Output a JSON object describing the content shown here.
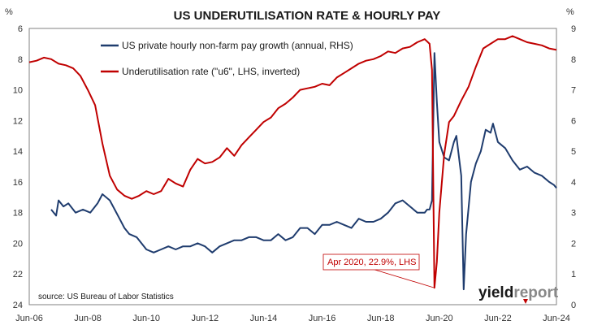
{
  "colors": {
    "pay": "#1f3c6e",
    "u6": "#c00000",
    "frame": "#808080"
  },
  "chart_data": {
    "type": "line",
    "title": "US UNDERUTILISATION RATE & HOURLY PAY",
    "left_axis": {
      "unit": "%",
      "min": 6,
      "max": 24,
      "inverted": true,
      "ticks": [
        6,
        8,
        10,
        12,
        14,
        16,
        18,
        20,
        22,
        24
      ]
    },
    "right_axis": {
      "unit": "%",
      "min": 0,
      "max": 9,
      "ticks": [
        0,
        1,
        2,
        3,
        4,
        5,
        6,
        7,
        8,
        9
      ]
    },
    "x_axis": {
      "start": "2006-06",
      "end": "2024-06",
      "ticks": [
        "Jun-06",
        "Jun-08",
        "Jun-10",
        "Jun-12",
        "Jun-14",
        "Jun-16",
        "Jun-18",
        "Jun-20",
        "Jun-22",
        "Jun-24"
      ]
    },
    "grid": false,
    "legend": "top-left",
    "series": [
      {
        "name": "US private hourly non-farm pay growth (annual, RHS)",
        "axis": "right",
        "color": "#1f3c6e",
        "points": [
          [
            "2007-03",
            3.1
          ],
          [
            "2007-05",
            2.9
          ],
          [
            "2007-06",
            3.4
          ],
          [
            "2007-08",
            3.2
          ],
          [
            "2007-10",
            3.3
          ],
          [
            "2008-01",
            3.0
          ],
          [
            "2008-04",
            3.1
          ],
          [
            "2008-07",
            3.0
          ],
          [
            "2008-10",
            3.3
          ],
          [
            "2008-12",
            3.6
          ],
          [
            "2009-03",
            3.4
          ],
          [
            "2009-05",
            3.1
          ],
          [
            "2009-07",
            2.8
          ],
          [
            "2009-09",
            2.5
          ],
          [
            "2009-11",
            2.3
          ],
          [
            "2010-02",
            2.2
          ],
          [
            "2010-06",
            1.8
          ],
          [
            "2010-09",
            1.7
          ],
          [
            "2010-12",
            1.8
          ],
          [
            "2011-03",
            1.9
          ],
          [
            "2011-06",
            1.8
          ],
          [
            "2011-09",
            1.9
          ],
          [
            "2011-12",
            1.9
          ],
          [
            "2012-03",
            2.0
          ],
          [
            "2012-06",
            1.9
          ],
          [
            "2012-09",
            1.7
          ],
          [
            "2012-12",
            1.9
          ],
          [
            "2013-03",
            2.0
          ],
          [
            "2013-06",
            2.1
          ],
          [
            "2013-09",
            2.1
          ],
          [
            "2013-12",
            2.2
          ],
          [
            "2014-03",
            2.2
          ],
          [
            "2014-06",
            2.1
          ],
          [
            "2014-09",
            2.1
          ],
          [
            "2014-12",
            2.3
          ],
          [
            "2015-03",
            2.1
          ],
          [
            "2015-06",
            2.2
          ],
          [
            "2015-09",
            2.5
          ],
          [
            "2015-12",
            2.5
          ],
          [
            "2016-03",
            2.3
          ],
          [
            "2016-06",
            2.6
          ],
          [
            "2016-09",
            2.6
          ],
          [
            "2016-12",
            2.7
          ],
          [
            "2017-03",
            2.6
          ],
          [
            "2017-06",
            2.5
          ],
          [
            "2017-09",
            2.8
          ],
          [
            "2017-12",
            2.7
          ],
          [
            "2018-03",
            2.7
          ],
          [
            "2018-06",
            2.8
          ],
          [
            "2018-09",
            3.0
          ],
          [
            "2018-12",
            3.3
          ],
          [
            "2019-03",
            3.4
          ],
          [
            "2019-06",
            3.2
          ],
          [
            "2019-09",
            3.0
          ],
          [
            "2019-12",
            3.0
          ],
          [
            "2020-01",
            3.1
          ],
          [
            "2020-02",
            3.1
          ],
          [
            "2020-03",
            3.4
          ],
          [
            "2020-04",
            8.2
          ],
          [
            "2020-05",
            6.6
          ],
          [
            "2020-06",
            5.3
          ],
          [
            "2020-08",
            4.8
          ],
          [
            "2020-10",
            4.7
          ],
          [
            "2020-12",
            5.3
          ],
          [
            "2021-01",
            5.5
          ],
          [
            "2021-03",
            4.2
          ],
          [
            "2021-04",
            0.5
          ],
          [
            "2021-05",
            2.3
          ],
          [
            "2021-07",
            4.0
          ],
          [
            "2021-09",
            4.6
          ],
          [
            "2021-11",
            5.0
          ],
          [
            "2022-01",
            5.7
          ],
          [
            "2022-03",
            5.6
          ],
          [
            "2022-04",
            5.9
          ],
          [
            "2022-06",
            5.3
          ],
          [
            "2022-09",
            5.1
          ],
          [
            "2022-12",
            4.7
          ],
          [
            "2023-03",
            4.4
          ],
          [
            "2023-06",
            4.5
          ],
          [
            "2023-09",
            4.3
          ],
          [
            "2023-12",
            4.2
          ],
          [
            "2024-03",
            4.0
          ],
          [
            "2024-05",
            3.9
          ],
          [
            "2024-06",
            3.8
          ]
        ]
      },
      {
        "name": "Underutilisation rate (\"u6\", LHS, inverted)",
        "axis": "left",
        "color": "#c00000",
        "points": [
          [
            "2006-06",
            8.2
          ],
          [
            "2006-09",
            8.1
          ],
          [
            "2006-12",
            7.9
          ],
          [
            "2007-03",
            8.0
          ],
          [
            "2007-06",
            8.3
          ],
          [
            "2007-09",
            8.4
          ],
          [
            "2007-12",
            8.6
          ],
          [
            "2008-03",
            9.1
          ],
          [
            "2008-06",
            10.0
          ],
          [
            "2008-09",
            11.0
          ],
          [
            "2008-12",
            13.5
          ],
          [
            "2009-03",
            15.6
          ],
          [
            "2009-06",
            16.5
          ],
          [
            "2009-09",
            16.9
          ],
          [
            "2009-12",
            17.1
          ],
          [
            "2010-03",
            16.9
          ],
          [
            "2010-06",
            16.6
          ],
          [
            "2010-09",
            16.8
          ],
          [
            "2010-12",
            16.6
          ],
          [
            "2011-03",
            15.8
          ],
          [
            "2011-06",
            16.1
          ],
          [
            "2011-09",
            16.3
          ],
          [
            "2011-12",
            15.2
          ],
          [
            "2012-03",
            14.5
          ],
          [
            "2012-06",
            14.8
          ],
          [
            "2012-09",
            14.7
          ],
          [
            "2012-12",
            14.4
          ],
          [
            "2013-03",
            13.8
          ],
          [
            "2013-06",
            14.3
          ],
          [
            "2013-09",
            13.6
          ],
          [
            "2013-12",
            13.1
          ],
          [
            "2014-03",
            12.6
          ],
          [
            "2014-06",
            12.1
          ],
          [
            "2014-09",
            11.8
          ],
          [
            "2014-12",
            11.2
          ],
          [
            "2015-03",
            10.9
          ],
          [
            "2015-06",
            10.5
          ],
          [
            "2015-09",
            10.0
          ],
          [
            "2015-12",
            9.9
          ],
          [
            "2016-03",
            9.8
          ],
          [
            "2016-06",
            9.6
          ],
          [
            "2016-09",
            9.7
          ],
          [
            "2016-12",
            9.2
          ],
          [
            "2017-03",
            8.9
          ],
          [
            "2017-06",
            8.6
          ],
          [
            "2017-09",
            8.3
          ],
          [
            "2017-12",
            8.1
          ],
          [
            "2018-03",
            8.0
          ],
          [
            "2018-06",
            7.8
          ],
          [
            "2018-09",
            7.5
          ],
          [
            "2018-12",
            7.6
          ],
          [
            "2019-03",
            7.3
          ],
          [
            "2019-06",
            7.2
          ],
          [
            "2019-09",
            6.9
          ],
          [
            "2019-12",
            6.7
          ],
          [
            "2020-02",
            7.0
          ],
          [
            "2020-03",
            8.7
          ],
          [
            "2020-04",
            22.9
          ],
          [
            "2020-05",
            21.2
          ],
          [
            "2020-06",
            18.0
          ],
          [
            "2020-08",
            14.2
          ],
          [
            "2020-10",
            12.1
          ],
          [
            "2020-12",
            11.7
          ],
          [
            "2021-03",
            10.7
          ],
          [
            "2021-06",
            9.8
          ],
          [
            "2021-09",
            8.5
          ],
          [
            "2021-12",
            7.3
          ],
          [
            "2022-03",
            7.0
          ],
          [
            "2022-06",
            6.7
          ],
          [
            "2022-09",
            6.7
          ],
          [
            "2022-12",
            6.5
          ],
          [
            "2023-03",
            6.7
          ],
          [
            "2023-06",
            6.9
          ],
          [
            "2023-09",
            7.0
          ],
          [
            "2023-12",
            7.1
          ],
          [
            "2024-03",
            7.3
          ],
          [
            "2024-06",
            7.4
          ]
        ]
      }
    ],
    "annotation": {
      "text": "Apr 2020, 22.9%, LHS",
      "date": "2020-04",
      "value": 22.9,
      "axis": "left"
    },
    "source": "source: US Bureau of Labor Statistics"
  },
  "branding": {
    "logo_part1": "yield",
    "logo_part2": "report",
    "logo_icon": "triangle-marker-icon"
  }
}
